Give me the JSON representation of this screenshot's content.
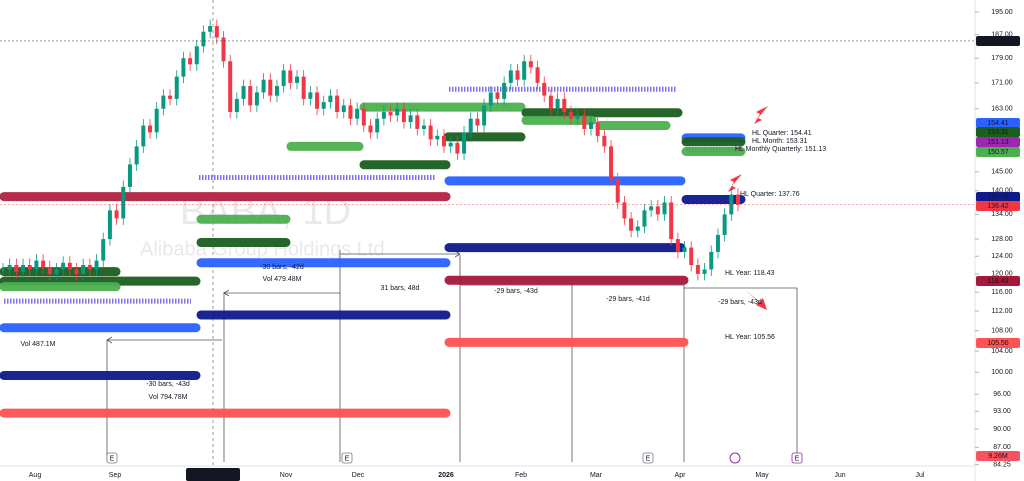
{
  "chart_data": {
    "type": "candlestick",
    "symbol": "BABA, 1D",
    "name": "Alibaba Group Holdings Ltd",
    "log_scale": true,
    "ylim": [
      84.2,
      199.4
    ],
    "yticks": [
      {
        "value": 195,
        "label": "195.00"
      },
      {
        "value": 187,
        "label": "187.00"
      },
      {
        "value": 179,
        "label": "179.00"
      },
      {
        "value": 171,
        "label": "171.00"
      },
      {
        "value": 163,
        "label": "163.00"
      },
      {
        "value": 145,
        "label": "145.00"
      },
      {
        "value": 140,
        "label": "140.00"
      },
      {
        "value": 134,
        "label": "134.00"
      },
      {
        "value": 128,
        "label": "128.00"
      },
      {
        "value": 124,
        "label": "124.00"
      },
      {
        "value": 120,
        "label": "120.00"
      },
      {
        "value": 116,
        "label": "116.00"
      },
      {
        "value": 112,
        "label": "112.00"
      },
      {
        "value": 108,
        "label": "108.00"
      },
      {
        "value": 104,
        "label": "104.00"
      },
      {
        "value": 100,
        "label": "100.00"
      },
      {
        "value": 96,
        "label": "96.00"
      },
      {
        "value": 93,
        "label": "93.00"
      },
      {
        "value": 90,
        "label": "90.00"
      },
      {
        "value": 87,
        "label": "87.00"
      },
      84.25
    ],
    "time_labels": [
      "Aug",
      "Sep",
      "Nov",
      "Dec",
      "2026",
      "Feb",
      "Mar",
      "Apr",
      "May",
      "Jun",
      "Jul"
    ],
    "crosshair_label": "Tue 07 Oct '25",
    "up_color": "#089981",
    "down_color": "#f23645",
    "closes": [
      121,
      122,
      120.5,
      122,
      121,
      123,
      121.5,
      120,
      121,
      122.5,
      121,
      120,
      122,
      121,
      123,
      128,
      135,
      133,
      141,
      147,
      152,
      158,
      156,
      163,
      167,
      166,
      173,
      179,
      177,
      183,
      188,
      190,
      186,
      178,
      162,
      166,
      170,
      164,
      168,
      172,
      167,
      170,
      175,
      171,
      173,
      166,
      168,
      163,
      165,
      167,
      162,
      164,
      160,
      163,
      158,
      156,
      160,
      162,
      161,
      163,
      159,
      161,
      157,
      158,
      154,
      155,
      152,
      153,
      150,
      156,
      160,
      158,
      164,
      168,
      166,
      171,
      175,
      172,
      178,
      176,
      171,
      167,
      163,
      166,
      162,
      160,
      161,
      157,
      159,
      155,
      152,
      143,
      137,
      133,
      130,
      131,
      135,
      136,
      134,
      137,
      128,
      125,
      126,
      122,
      120,
      121,
      125,
      129,
      134,
      139,
      136.42
    ],
    "levels": [
      {
        "price": 163.5,
        "color": "#4caf50",
        "style": "solid"
      },
      {
        "price": 161.8,
        "color": "#1b5e20",
        "style": "solid"
      },
      {
        "price": 159.5,
        "color": "#4caf50",
        "style": "solid"
      },
      {
        "price": 158,
        "color": "#4caf50",
        "style": "solid"
      },
      {
        "price": 154.7,
        "color": "#1b5e20",
        "style": "solid"
      },
      {
        "price": 152,
        "color": "#4caf50",
        "style": "solid"
      },
      {
        "price": 146.9,
        "color": "#1b5e20",
        "style": "solid"
      },
      {
        "price": 169,
        "color": "#7b68ee",
        "style": "dashed"
      },
      {
        "price": 143.5,
        "color": "#7b68ee",
        "style": "dashed"
      },
      {
        "price": 114.1,
        "color": "#7b68ee",
        "style": "dashed"
      },
      {
        "price": 138.5,
        "color": "#b2223f",
        "style": "solid"
      },
      {
        "price": 142.6,
        "color": "#2962ff",
        "style": "solid"
      },
      {
        "price": 126,
        "color": "#0f1a8c",
        "style": "solid"
      },
      {
        "price": 118.6,
        "color": "#a5193a",
        "style": "solid"
      },
      {
        "price": 132.8,
        "color": "#4caf50",
        "style": "solid"
      },
      {
        "price": 127.2,
        "color": "#1b5e20",
        "style": "solid"
      },
      {
        "price": 122.5,
        "color": "#2962ff",
        "style": "solid"
      },
      {
        "price": 111.2,
        "color": "#0f1a8c",
        "style": "solid"
      },
      {
        "price": 120.5,
        "color": "#1b5e20",
        "style": "solid"
      },
      {
        "price": 118.4,
        "color": "#1b5e20",
        "style": "solid"
      },
      {
        "price": 117.2,
        "color": "#4caf50",
        "style": "solid"
      },
      {
        "price": 108.6,
        "color": "#2962ff",
        "style": "solid"
      },
      {
        "price": 99.4,
        "color": "#0f1a8c",
        "style": "solid"
      },
      {
        "price": 92.7,
        "color": "#ff5252",
        "style": "solid"
      },
      {
        "price": 105.7,
        "color": "#ff5252",
        "style": "solid"
      },
      {
        "price": 154.41,
        "color": "#2962ff",
        "style": "solid"
      },
      {
        "price": 153.31,
        "color": "#1b5e20",
        "style": "solid"
      },
      {
        "price": 151.13,
        "color": "#9c27b0",
        "style": "dashed"
      },
      {
        "price": 150.57,
        "color": "#4caf50",
        "style": "solid"
      },
      {
        "price": 137.76,
        "color": "#0f1a8c",
        "style": "solid"
      }
    ],
    "price_badges": [
      {
        "value": 184.84,
        "color": "#131722",
        "line": true
      },
      {
        "value": 154.41,
        "color": "#2962ff",
        "line": false
      },
      {
        "value": 153.31,
        "color": "#1b5e20",
        "line": false
      },
      {
        "value": 151.13,
        "color": "#9c27b0",
        "line": false
      },
      {
        "value": 150.57,
        "color": "#4caf50",
        "line": false
      },
      {
        "value": 137.76,
        "color": "#0f1a8c",
        "line": false
      },
      {
        "value": 136.42,
        "color": "#f23645",
        "line": true
      },
      {
        "value": 118.43,
        "color": "#a5193a",
        "line": false
      },
      {
        "value": 105.56,
        "color": "#ff5252",
        "line": false
      }
    ],
    "volume_badge": "9.26M",
    "level_labels": [
      {
        "text": "HL Quarter: 154.41",
        "color": "#f23645"
      },
      {
        "text": "HL Month: 153.31",
        "color": "#f23645"
      },
      {
        "text": "HL Monthly Quarterly: 151.13",
        "color": "#9c27b0"
      },
      {
        "text": "HL Quarter: 137.76",
        "color": "#f23645"
      },
      {
        "text": "HL Year: 118.43",
        "color": "#f23645"
      },
      {
        "text": "HL Year: 105.56",
        "color": "#f23645"
      }
    ],
    "measures": [
      "-30 bars, -42d",
      "Vol 479.48M",
      "31 bars, 48d",
      "-29 bars, -43d",
      "-29 bars, -41d",
      "-29 bars, -43d",
      "Vol 487.1M",
      "-30 bars, -43d",
      "Vol 794.78M"
    ],
    "earnings_marker": "E"
  }
}
